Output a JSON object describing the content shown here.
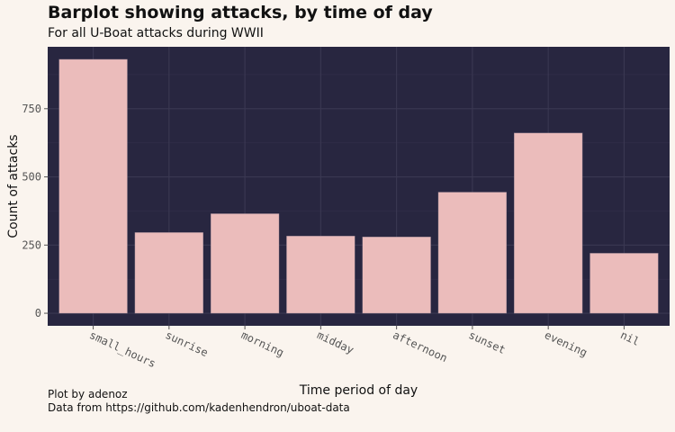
{
  "chart_data": {
    "type": "bar",
    "title": "Barplot showing attacks, by time of day",
    "subtitle": "For all U-Boat attacks during WWII",
    "xlabel": "Time period of day",
    "ylabel": "Count of attacks",
    "categories": [
      "small_hours",
      "sunrise",
      "morning",
      "midday",
      "afternoon",
      "sunset",
      "evening",
      "nil"
    ],
    "values": [
      931,
      296,
      365,
      283,
      280,
      444,
      661,
      220
    ],
    "yticks": [
      0,
      250,
      500,
      750
    ],
    "ytick_labels": [
      "0",
      "250",
      "500",
      "750"
    ],
    "ylim": [
      -46,
      977
    ],
    "grid": true,
    "colors": {
      "bar": "#ebbcbb",
      "panel": "#282640",
      "grid": "#3a3852",
      "background": "#faf4ee"
    },
    "caption": [
      "Plot by adenoz",
      "Data from https://github.com/kadenhendron/uboat-data"
    ]
  }
}
